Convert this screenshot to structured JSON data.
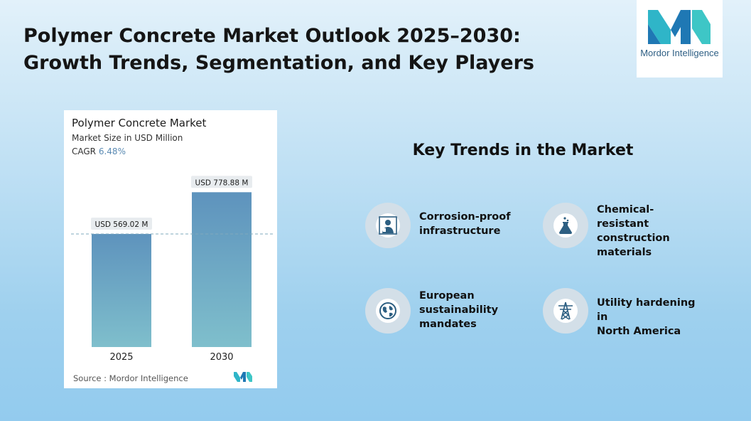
{
  "header": {
    "title_line1": "Polymer Concrete Market Outlook 2025–2030:",
    "title_line2": "Growth Trends, Segmentation, and Key Players"
  },
  "logo": {
    "text": "Mordor Intelligence",
    "icon": "mordor-logo-icon",
    "colors": [
      "#2fb5c8",
      "#1f78b4",
      "#3ec6c6"
    ]
  },
  "chart_card": {
    "title": "Polymer Concrete Market",
    "subtitle": "Market Size in USD Million",
    "cagr_label": "CAGR",
    "cagr_value": "6.48%",
    "source": "Source :  Mordor Intelligence"
  },
  "chart_data": {
    "type": "bar",
    "title": "Polymer Concrete Market",
    "ylabel": "Market Size in USD Million",
    "categories": [
      "2025",
      "2030"
    ],
    "values": [
      569.02,
      778.88
    ],
    "value_labels": [
      "USD 569.02 M",
      "USD 778.88 M"
    ],
    "ylim": [
      0,
      800
    ],
    "reference_line": 569.02,
    "bar_color_top": "#5e93bd",
    "bar_color_bottom": "#7fbfcc",
    "grid": false
  },
  "trends": {
    "heading": "Key Trends in the Market",
    "items": [
      {
        "label": "Corrosion-proof\ninfrastructure",
        "icon": "engineer-icon"
      },
      {
        "label": "Chemical-resistant\nconstruction\nmaterials",
        "icon": "flask-icon"
      },
      {
        "label": "European\nsustainability\nmandates",
        "icon": "globe-icon"
      },
      {
        "label": "Utility hardening in\nNorth America",
        "icon": "transmission-tower-icon"
      }
    ],
    "icon_color": "#2d5f82"
  }
}
